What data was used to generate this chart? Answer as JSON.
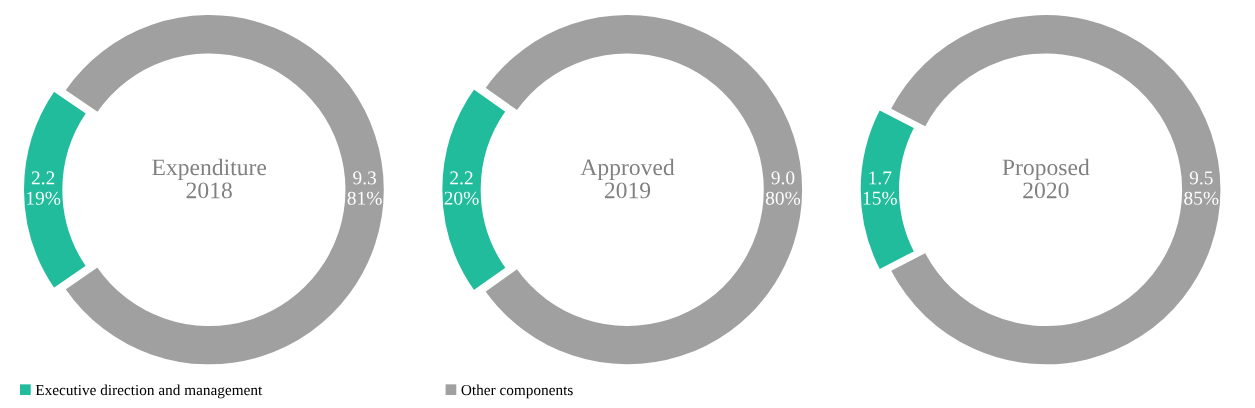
{
  "chart_data": [
    {
      "type": "donut",
      "title": "Expenditure\n2018",
      "categories": [
        "Executive direction and management",
        "Other components"
      ],
      "values": [
        2.2,
        9.3
      ],
      "value_labels": [
        "2.2\n19%",
        "9.3\n81%"
      ],
      "colors": [
        "#20bc9c",
        "#a0a0a0"
      ],
      "legend": "bottom"
    },
    {
      "type": "donut",
      "title": "Approved\n2019",
      "categories": [
        null,
        null
      ],
      "values": [
        2.2,
        9.0
      ],
      "value_labels": [
        "2.2\n20%",
        "9.0\n80%"
      ],
      "colors": [
        "#20bc9c",
        "#a0a0a0"
      ]
    },
    {
      "type": "donut",
      "title": "Proposed\n2020",
      "categories": [
        null,
        null
      ],
      "values": [
        1.7,
        9.5
      ],
      "value_labels": [
        "1.7\n15%",
        "9.5\n85%"
      ],
      "colors": [
        "#20bc9c",
        "#a0a0a0"
      ]
    }
  ]
}
